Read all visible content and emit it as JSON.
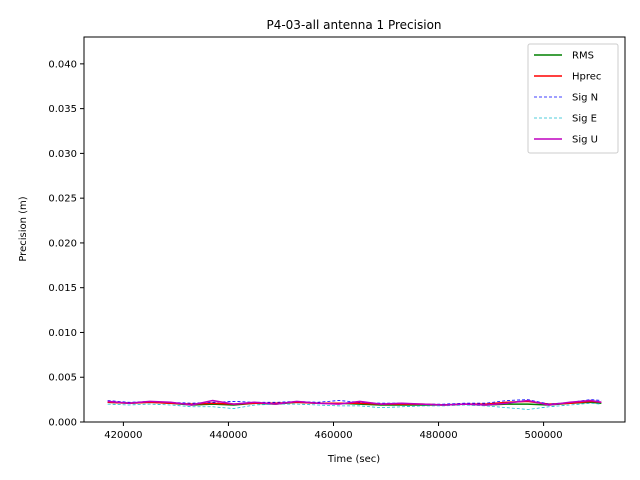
{
  "chart_data": {
    "type": "line",
    "title": "P4-03-all antenna 1 Precision",
    "xlabel": "Time (sec)",
    "ylabel": "Precision (m)",
    "xlim": [
      412500,
      515500
    ],
    "ylim": [
      0,
      0.043
    ],
    "xticks": [
      420000,
      440000,
      460000,
      480000,
      500000
    ],
    "xtick_labels": [
      "420000",
      "440000",
      "460000",
      "480000",
      "500000"
    ],
    "yticks": [
      0,
      0.005,
      0.01,
      0.015,
      0.02,
      0.025,
      0.03,
      0.035,
      0.04
    ],
    "ytick_labels": [
      "0.000",
      "0.005",
      "0.010",
      "0.015",
      "0.020",
      "0.025",
      "0.030",
      "0.035",
      "0.040"
    ],
    "grid": false,
    "legend_position": "top-right",
    "x": [
      417000,
      421000,
      425000,
      429000,
      433000,
      437000,
      441000,
      445000,
      449000,
      453000,
      457000,
      461000,
      465000,
      469000,
      473000,
      477000,
      481000,
      485000,
      489000,
      493000,
      497000,
      501000,
      505000,
      509000,
      511000
    ],
    "series": [
      {
        "name": "RMS",
        "color": "#008000",
        "dash": "solid",
        "values": [
          0.0022,
          0.0021,
          0.0022,
          0.0021,
          0.0019,
          0.002,
          0.0019,
          0.0021,
          0.002,
          0.0022,
          0.0021,
          0.0021,
          0.002,
          0.0019,
          0.0019,
          0.0019,
          0.0019,
          0.002,
          0.0019,
          0.002,
          0.002,
          0.0019,
          0.0021,
          0.0022,
          0.0021
        ]
      },
      {
        "name": "Hprec",
        "color": "#ff0000",
        "dash": "solid",
        "values": [
          0.0022,
          0.0021,
          0.0022,
          0.0021,
          0.002,
          0.0021,
          0.002,
          0.0021,
          0.0021,
          0.0022,
          0.0021,
          0.0021,
          0.0021,
          0.002,
          0.002,
          0.002,
          0.0019,
          0.002,
          0.002,
          0.0022,
          0.0023,
          0.002,
          0.0021,
          0.0023,
          0.0022
        ]
      },
      {
        "name": "Sig N",
        "color": "#0000ff",
        "dash": "dashed",
        "values": [
          0.0024,
          0.0022,
          0.0023,
          0.0022,
          0.0021,
          0.0022,
          0.0023,
          0.0022,
          0.0022,
          0.0023,
          0.0022,
          0.0024,
          0.0022,
          0.0021,
          0.0021,
          0.002,
          0.002,
          0.0021,
          0.0021,
          0.0024,
          0.0025,
          0.002,
          0.0022,
          0.0025,
          0.0024
        ]
      },
      {
        "name": "Sig E",
        "color": "#17becf",
        "dash": "dashed",
        "values": [
          0.002,
          0.0019,
          0.002,
          0.0019,
          0.0017,
          0.0017,
          0.0015,
          0.0019,
          0.002,
          0.002,
          0.0019,
          0.0018,
          0.0018,
          0.0016,
          0.0017,
          0.0018,
          0.0018,
          0.0019,
          0.0018,
          0.0016,
          0.0014,
          0.0017,
          0.0019,
          0.0021,
          0.002
        ]
      },
      {
        "name": "Sig U",
        "color": "#bf00bf",
        "dash": "solid",
        "values": [
          0.0023,
          0.0021,
          0.0023,
          0.0022,
          0.0019,
          0.0024,
          0.002,
          0.0022,
          0.002,
          0.0023,
          0.0021,
          0.002,
          0.0023,
          0.002,
          0.0021,
          0.002,
          0.0019,
          0.002,
          0.0019,
          0.0021,
          0.0024,
          0.0019,
          0.0022,
          0.0024,
          0.0022
        ]
      }
    ]
  }
}
